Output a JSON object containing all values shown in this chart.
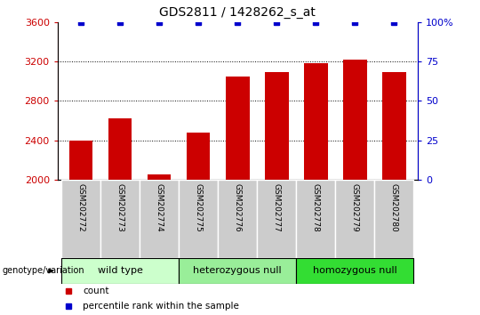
{
  "title": "GDS2811 / 1428262_s_at",
  "samples": [
    "GSM202772",
    "GSM202773",
    "GSM202774",
    "GSM202775",
    "GSM202776",
    "GSM202777",
    "GSM202778",
    "GSM202779",
    "GSM202780"
  ],
  "bar_values": [
    2400,
    2620,
    2055,
    2480,
    3050,
    3090,
    3180,
    3220,
    3090
  ],
  "percentile_values": [
    100,
    100,
    100,
    100,
    100,
    100,
    100,
    100,
    100
  ],
  "bar_color": "#cc0000",
  "dot_color": "#0000cc",
  "ylim_left": [
    2000,
    3600
  ],
  "ylim_right": [
    0,
    100
  ],
  "yticks_left": [
    2000,
    2400,
    2800,
    3200,
    3600
  ],
  "yticks_right": [
    0,
    25,
    50,
    75,
    100
  ],
  "ytick_labels_right": [
    "0",
    "25",
    "50",
    "75",
    "100%"
  ],
  "groups": [
    {
      "label": "wild type",
      "indices": [
        0,
        1,
        2
      ],
      "color": "#ccffcc"
    },
    {
      "label": "heterozygous null",
      "indices": [
        3,
        4,
        5
      ],
      "color": "#99ee99"
    },
    {
      "label": "homozygous null",
      "indices": [
        6,
        7,
        8
      ],
      "color": "#33dd33"
    }
  ],
  "group_label_prefix": "genotype/variation",
  "legend_count_label": "count",
  "legend_percentile_label": "percentile rank within the sample",
  "title_fontsize": 10,
  "axis_label_color_left": "#cc0000",
  "axis_label_color_right": "#0000cc",
  "bar_width": 0.6,
  "sample_box_color": "#cccccc",
  "arrow_color": "#555555"
}
